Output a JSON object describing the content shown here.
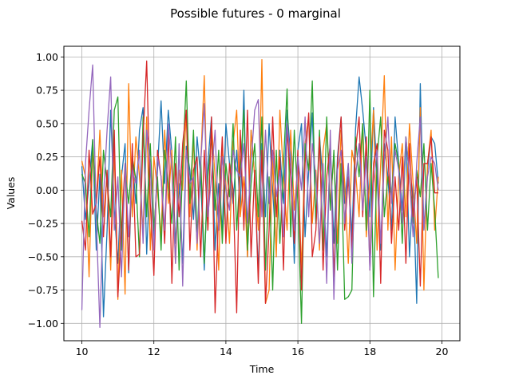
{
  "chart_data": {
    "type": "line",
    "title": "Possible futures - 0 marginal",
    "xlabel": "Time",
    "ylabel": "Values",
    "xlim": [
      9.5,
      20.5
    ],
    "ylim": [
      -1.13,
      1.08
    ],
    "xticks": [
      10,
      12,
      14,
      16,
      18,
      20
    ],
    "yticks": [
      -1.0,
      -0.75,
      -0.5,
      -0.25,
      0.0,
      0.25,
      0.5,
      0.75,
      1.0
    ],
    "xtick_labels": [
      "10",
      "12",
      "14",
      "16",
      "18",
      "20"
    ],
    "ytick_labels": [
      "−1.00",
      "−0.75",
      "−0.50",
      "−0.25",
      "0.00",
      "0.25",
      "0.50",
      "0.75",
      "1.00"
    ],
    "grid": true,
    "legend": "none",
    "x": [
      10.0,
      10.1,
      10.2,
      10.3,
      10.4,
      10.5,
      10.6,
      10.7,
      10.8,
      10.9,
      11.0,
      11.1,
      11.2,
      11.3,
      11.4,
      11.5,
      11.6,
      11.7,
      11.8,
      11.9,
      12.0,
      12.1,
      12.2,
      12.3,
      12.4,
      12.5,
      12.6,
      12.7,
      12.8,
      12.9,
      13.0,
      13.1,
      13.2,
      13.3,
      13.4,
      13.5,
      13.6,
      13.7,
      13.8,
      13.9,
      14.0,
      14.1,
      14.2,
      14.3,
      14.4,
      14.5,
      14.6,
      14.7,
      14.8,
      14.9,
      15.0,
      15.1,
      15.2,
      15.3,
      15.4,
      15.5,
      15.6,
      15.7,
      15.8,
      15.9,
      16.0,
      16.1,
      16.2,
      16.3,
      16.4,
      16.5,
      16.6,
      16.7,
      16.8,
      16.9,
      17.0,
      17.1,
      17.2,
      17.3,
      17.4,
      17.5,
      17.6,
      17.7,
      17.8,
      17.9,
      18.0,
      18.1,
      18.2,
      18.3,
      18.4,
      18.5,
      18.6,
      18.7,
      18.8,
      18.9,
      19.0,
      19.1,
      19.2,
      19.3,
      19.4,
      19.5,
      19.6,
      19.7,
      19.8,
      19.9
    ],
    "series": [
      {
        "color": "#1f77b4",
        "values": [
          0.18,
          -0.22,
          0.05,
          0.38,
          -0.45,
          0.12,
          -0.95,
          -0.3,
          0.6,
          -0.15,
          -0.55,
          0.1,
          0.35,
          -0.62,
          0.25,
          -0.1,
          0.45,
          0.62,
          -0.48,
          0.2,
          -0.35,
          0.15,
          0.67,
          0.05,
          0.6,
          0.28,
          -0.4,
          0.05,
          -0.55,
          0.33,
          0.15,
          -0.22,
          0.4,
          0.1,
          -0.6,
          0.2,
          0.55,
          -0.45,
          0.05,
          -0.3,
          0.5,
          0.2,
          -0.1,
          0.3,
          -0.15,
          0.75,
          -0.5,
          0.45,
          0.1,
          -0.62,
          0.35,
          -0.2,
          0.5,
          0.0,
          -0.45,
          0.3,
          -0.1,
          0.6,
          0.25,
          -0.55,
          0.3,
          0.5,
          -0.35,
          0.15,
          0.58,
          -0.25,
          0.4,
          0.05,
          -0.5,
          0.35,
          -0.4,
          0.25,
          0.55,
          -0.1,
          0.2,
          -0.35,
          0.45,
          0.85,
          0.6,
          0.3,
          -0.2,
          0.62,
          0.1,
          -0.45,
          0.35,
          0.1,
          -0.3,
          0.55,
          0.2,
          -0.15,
          0.4,
          -0.5,
          0.05,
          -0.85,
          0.8,
          -0.3,
          0.15,
          0.4,
          0.35,
          0.05
        ]
      },
      {
        "color": "#ff7f0e",
        "values": [
          0.22,
          0.1,
          -0.65,
          0.3,
          -0.1,
          0.45,
          -0.2,
          0.1,
          -0.6,
          0.3,
          -0.82,
          0.15,
          -0.78,
          0.8,
          -0.2,
          0.4,
          0.1,
          -0.3,
          0.55,
          -0.45,
          0.25,
          0.0,
          -0.35,
          0.45,
          -0.1,
          0.3,
          -0.55,
          0.15,
          0.0,
          0.6,
          -0.2,
          0.4,
          -0.45,
          0.2,
          0.86,
          -0.3,
          0.5,
          0.1,
          -0.6,
          0.3,
          0.05,
          -0.4,
          0.35,
          0.6,
          -0.2,
          0.1,
          -0.5,
          0.45,
          0.1,
          -0.3,
          0.98,
          -0.85,
          -0.75,
          0.25,
          -0.5,
          0.6,
          0.1,
          -0.3,
          0.45,
          -0.15,
          0.2,
          -0.6,
          0.35,
          0.55,
          -0.25,
          0.15,
          -0.45,
          0.3,
          0.5,
          -0.1,
          0.25,
          -0.4,
          0.45,
          0.05,
          -0.55,
          0.3,
          0.15,
          -0.2,
          0.5,
          -0.35,
          0.1,
          0.6,
          -0.45,
          0.2,
          0.86,
          -0.3,
          0.4,
          -0.6,
          0.1,
          0.35,
          -0.2,
          0.5,
          0.05,
          -0.4,
          0.62,
          -0.75,
          0.2,
          0.45,
          -0.3,
          0.1
        ]
      },
      {
        "color": "#2ca02c",
        "values": [
          0.12,
          0.05,
          -0.35,
          0.38,
          -0.15,
          -0.4,
          0.3,
          0.05,
          -0.2,
          0.6,
          0.7,
          -0.45,
          0.15,
          -0.1,
          0.25,
          0.08,
          -0.5,
          0.55,
          -0.2,
          0.35,
          -0.3,
          0.1,
          -0.45,
          0.3,
          0.05,
          -0.25,
          0.4,
          -0.6,
          0.2,
          0.82,
          -0.1,
          0.45,
          -0.35,
          0.25,
          -0.55,
          0.1,
          0.4,
          -0.15,
          0.3,
          -0.4,
          0.2,
          -0.05,
          0.5,
          -0.3,
          0.15,
          0.6,
          -0.45,
          0.05,
          0.35,
          -0.2,
          0.55,
          -0.6,
          0.1,
          -0.75,
          0.3,
          -0.4,
          0.2,
          0.76,
          -0.35,
          0.45,
          -0.1,
          -1.0,
          0.35,
          0.15,
          0.82,
          -0.25,
          0.45,
          -0.45,
          0.55,
          -0.15,
          0.3,
          -0.6,
          0.2,
          -0.82,
          -0.8,
          -0.75,
          0.4,
          0.1,
          0.5,
          -0.3,
          0.75,
          -0.8,
          0.25,
          0.55,
          -0.2,
          0.1,
          -0.05,
          0.35,
          0.2,
          -0.4,
          0.4,
          0.1,
          -0.25,
          0.15,
          -0.05,
          0.35,
          -0.3,
          0.2,
          -0.15,
          -0.66
        ]
      },
      {
        "color": "#d62728",
        "values": [
          -0.23,
          -0.45,
          0.3,
          -0.18,
          -0.1,
          0.25,
          -0.35,
          0.15,
          -0.5,
          0.45,
          -0.8,
          -0.3,
          0.2,
          -0.6,
          0.35,
          -0.5,
          -0.48,
          0.4,
          0.97,
          -0.1,
          -0.64,
          0.3,
          0.1,
          -0.4,
          0.45,
          -0.7,
          0.2,
          -0.2,
          0.35,
          0.6,
          -0.45,
          0.15,
          0.25,
          -0.5,
          0.3,
          -0.3,
          0.55,
          -0.92,
          -0.15,
          0.4,
          -0.4,
          0.2,
          0.0,
          -0.92,
          0.45,
          -0.3,
          0.6,
          -0.5,
          0.15,
          -0.7,
          0.3,
          -0.85,
          -0.3,
          0.55,
          -0.2,
          0.25,
          -0.6,
          0.45,
          0.1,
          -0.4,
          0.3,
          -0.75,
          0.2,
          0.58,
          -0.5,
          -0.3,
          0.4,
          -0.6,
          0.1,
          0.35,
          -0.65,
          0.2,
          0.55,
          -0.3,
          0.1,
          -0.45,
          0.3,
          0.55,
          -0.2,
          0.4,
          -0.6,
          0.2,
          0.35,
          -0.7,
          0.45,
          0.3,
          -0.4,
          0.1,
          -0.3,
          0.25,
          -0.55,
          0.35,
          -0.2,
          0.1,
          -0.72,
          0.2,
          0.2,
          0.4,
          -0.02,
          -0.02
        ]
      },
      {
        "color": "#9467bd",
        "values": [
          -0.9,
          0.2,
          0.6,
          0.94,
          -0.2,
          -1.03,
          -0.05,
          0.45,
          0.85,
          -0.3,
          0.1,
          -0.65,
          0.2,
          -0.35,
          0.15,
          0.05,
          0.3,
          -0.4,
          0.45,
          0.2,
          -0.45,
          0.25,
          0.1,
          -0.3,
          0.5,
          0.15,
          -0.55,
          0.35,
          -0.72,
          0.3,
          0.05,
          0.1,
          -0.4,
          0.2,
          0.65,
          -0.2,
          0.1,
          0.45,
          -0.3,
          0.25,
          0.0,
          -0.15,
          0.3,
          0.15,
          0.1,
          0.35,
          -0.25,
          0.2,
          0.6,
          0.68,
          -0.2,
          0.45,
          -0.1,
          0.3,
          -0.05,
          0.15,
          -0.35,
          0.5,
          0.2,
          -0.3,
          0.25,
          0.0,
          0.55,
          -0.2,
          0.35,
          0.1,
          -0.4,
          0.2,
          -0.7,
          0.45,
          -0.82,
          0.15,
          0.3,
          -0.25,
          0.2,
          -0.55,
          0.1,
          0.35,
          -0.15,
          0.25,
          -0.6,
          0.05,
          0.3,
          -0.4,
          0.2,
          0.55,
          -0.1,
          0.3,
          0.15,
          -0.25,
          0.4,
          0.1,
          -0.35,
          0.2,
          0.55,
          -0.3,
          0.1,
          0.25,
          0.2,
          0.0
        ]
      }
    ]
  }
}
